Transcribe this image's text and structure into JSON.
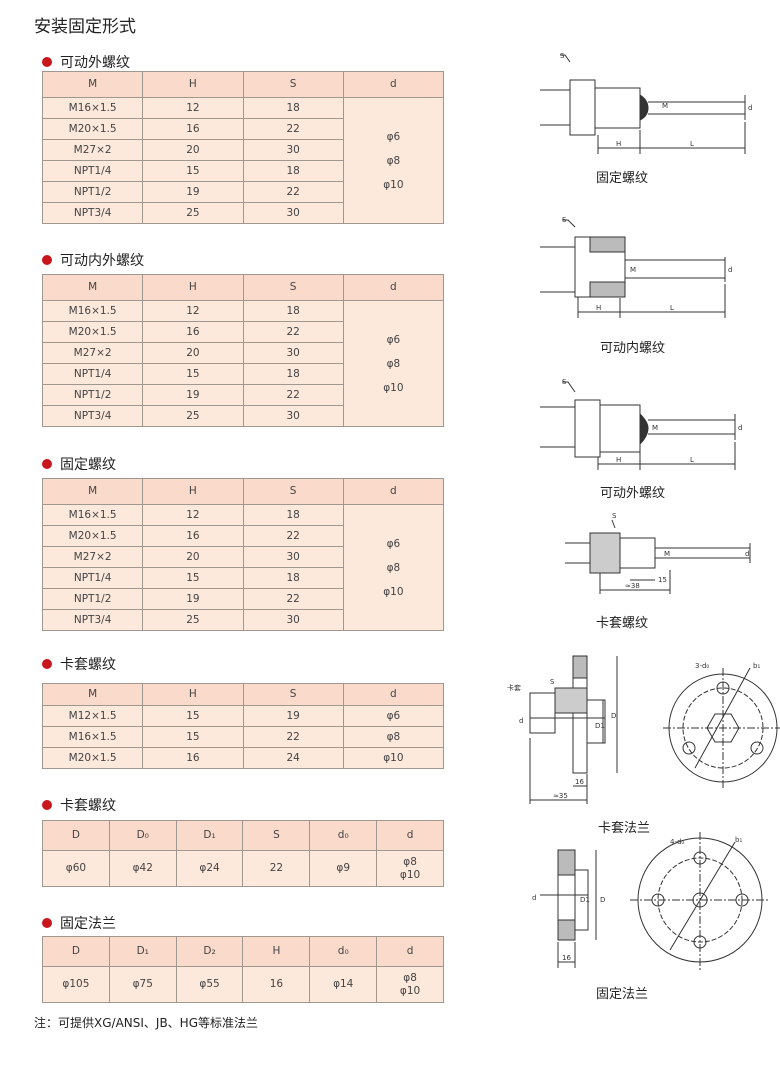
{
  "title": "安装固定形式",
  "sections": [
    {
      "heading": "可动外螺纹",
      "headers": [
        "M",
        "H",
        "S",
        "d"
      ],
      "rows": [
        [
          "M16×1.5",
          "12",
          "18"
        ],
        [
          "M20×1.5",
          "16",
          "22"
        ],
        [
          "M27×2",
          "20",
          "30"
        ],
        [
          "NPT1/4",
          "15",
          "18"
        ],
        [
          "NPT1/2",
          "19",
          "22"
        ],
        [
          "NPT3/4",
          "25",
          "30"
        ]
      ],
      "merged_d": [
        "φ6",
        "φ8",
        "φ10"
      ]
    },
    {
      "heading": "可动内外螺纹",
      "headers": [
        "M",
        "H",
        "S",
        "d"
      ],
      "rows": [
        [
          "M16×1.5",
          "12",
          "18"
        ],
        [
          "M20×1.5",
          "16",
          "22"
        ],
        [
          "M27×2",
          "20",
          "30"
        ],
        [
          "NPT1/4",
          "15",
          "18"
        ],
        [
          "NPT1/2",
          "19",
          "22"
        ],
        [
          "NPT3/4",
          "25",
          "30"
        ]
      ],
      "merged_d": [
        "φ6",
        "φ8",
        "φ10"
      ]
    },
    {
      "heading": "固定螺纹",
      "headers": [
        "M",
        "H",
        "S",
        "d"
      ],
      "rows": [
        [
          "M16×1.5",
          "12",
          "18"
        ],
        [
          "M20×1.5",
          "16",
          "22"
        ],
        [
          "M27×2",
          "20",
          "30"
        ],
        [
          "NPT1/4",
          "15",
          "18"
        ],
        [
          "NPT1/2",
          "19",
          "22"
        ],
        [
          "NPT3/4",
          "25",
          "30"
        ]
      ],
      "merged_d": [
        "φ6",
        "φ8",
        "φ10"
      ]
    },
    {
      "heading": "卡套螺纹",
      "headers": [
        "M",
        "H",
        "S",
        "d"
      ],
      "rows": [
        [
          "M12×1.5",
          "15",
          "19",
          "φ6"
        ],
        [
          "M16×1.5",
          "15",
          "22",
          "φ8"
        ],
        [
          "M20×1.5",
          "16",
          "24",
          "φ10"
        ]
      ]
    },
    {
      "heading": "卡套螺纹",
      "headers": [
        "D",
        "D₀",
        "D₁",
        "S",
        "d₀",
        "d"
      ],
      "rows": [
        [
          "φ60",
          "φ42",
          "φ24",
          "22",
          "φ9",
          "φ8\nφ10"
        ]
      ]
    },
    {
      "heading": "固定法兰",
      "headers": [
        "D",
        "D₁",
        "D₂",
        "H",
        "d₀",
        "d"
      ],
      "rows": [
        [
          "φ105",
          "φ75",
          "φ55",
          "16",
          "φ14",
          "φ8\nφ10"
        ]
      ]
    }
  ],
  "note": "注：可提供XG/ANSI、JB、HG等标准法兰",
  "diagrams": [
    {
      "caption": "固定螺纹",
      "labels": {
        "s": "S",
        "m": "M",
        "d": "d",
        "h": "H",
        "l": "L"
      }
    },
    {
      "caption": "可动内螺纹",
      "labels": {
        "s": "S",
        "m": "M",
        "d": "d",
        "h": "H",
        "l": "L"
      }
    },
    {
      "caption": "可动外螺纹",
      "labels": {
        "s": "S",
        "m": "M",
        "d": "d",
        "h": "H",
        "l": "L"
      }
    },
    {
      "caption": "卡套螺纹",
      "labels": {
        "s": "S",
        "m": "M",
        "d": "d",
        "w": "15",
        "l": "≈38"
      }
    },
    {
      "caption": "卡套法兰",
      "labels": {
        "ka": "卡套",
        "s": "S",
        "d": "d",
        "d1": "D1",
        "D": "D",
        "w": "16",
        "l": "≈35",
        "holes": "3-d₀",
        "b": "b₁"
      }
    },
    {
      "caption": "固定法兰",
      "labels": {
        "d": "d",
        "d1": "D1",
        "D": "D",
        "w": "16",
        "holes": "4-d₀",
        "b": "b₁"
      }
    }
  ],
  "colors": {
    "header_bg": "#f9dacb",
    "cell_bg": "#fde8dc",
    "bullet": "#c8161d"
  }
}
